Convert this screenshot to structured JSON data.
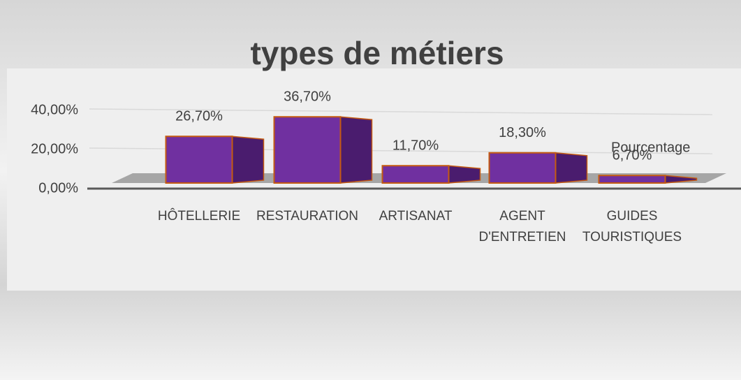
{
  "chart_data": {
    "type": "bar3d",
    "title": "types de métiers",
    "categories": [
      "HÔTELLERIE",
      "RESTAURATION",
      "ARTISANAT",
      "AGENT D'ENTRETIEN",
      "GUIDES TOURISTIQUES"
    ],
    "series": [
      {
        "name": "Pourcentage",
        "color": "#7030a0",
        "values": [
          26.7,
          36.7,
          11.7,
          18.3,
          6.7
        ],
        "value_labels": [
          "26,70%",
          "36,70%",
          "11,70%",
          "18,30%",
          "6,70%"
        ]
      }
    ],
    "ylim": [
      0,
      50
    ],
    "yticks": [
      {
        "value": 0,
        "label": "0,00%"
      },
      {
        "value": 20,
        "label": "20,00%"
      },
      {
        "value": 40,
        "label": "40,00%"
      }
    ],
    "grid": true
  }
}
